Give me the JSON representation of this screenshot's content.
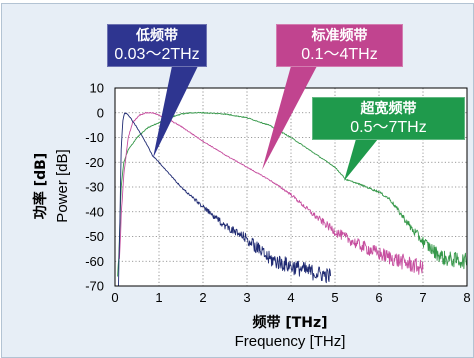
{
  "chart_data": {
    "type": "line",
    "xlabel": [
      "频带 [THz]",
      "Frequency [THz]"
    ],
    "ylabel": [
      "功率 [dB]",
      "Power [dB]"
    ],
    "xlim": [
      0,
      8
    ],
    "ylim": [
      -70,
      10
    ],
    "xticks": [
      0,
      1,
      2,
      3,
      4,
      5,
      6,
      7,
      8
    ],
    "yticks": [
      10,
      0,
      -10,
      -20,
      -30,
      -40,
      -50,
      -60,
      -70
    ],
    "grid": true,
    "series": [
      {
        "name": "低频带",
        "range": "0.03～2THz",
        "color": "#1f2a72",
        "label_color": "#2e3590",
        "points": [
          [
            0.08,
            -68
          ],
          [
            0.11,
            -45
          ],
          [
            0.14,
            -15
          ],
          [
            0.18,
            -3
          ],
          [
            0.22,
            0
          ],
          [
            0.28,
            -0.5
          ],
          [
            0.35,
            -2
          ],
          [
            0.5,
            -6
          ],
          [
            0.7,
            -12
          ],
          [
            0.86,
            -17.5
          ],
          [
            1.0,
            -20
          ],
          [
            1.25,
            -25
          ],
          [
            1.5,
            -30
          ],
          [
            1.75,
            -34
          ],
          [
            2.0,
            -38
          ],
          [
            2.25,
            -42
          ],
          [
            2.5,
            -45.5
          ],
          [
            2.75,
            -48.5
          ],
          [
            3.0,
            -51
          ],
          [
            3.25,
            -55
          ],
          [
            3.5,
            -59
          ],
          [
            4.0,
            -62
          ],
          [
            4.5,
            -64.5
          ],
          [
            4.9,
            -66
          ]
        ]
      },
      {
        "name": "标准频带",
        "range": "0.1～4THz",
        "color": "#c64f9f",
        "label_color": "#c1448f",
        "points": [
          [
            0.1,
            -60
          ],
          [
            0.14,
            -42
          ],
          [
            0.2,
            -25
          ],
          [
            0.3,
            -10
          ],
          [
            0.4,
            -4
          ],
          [
            0.55,
            -1
          ],
          [
            0.7,
            0
          ],
          [
            0.85,
            0
          ],
          [
            1.0,
            -1
          ],
          [
            1.25,
            -3
          ],
          [
            1.5,
            -5.5
          ],
          [
            1.75,
            -8.5
          ],
          [
            2.0,
            -11.5
          ],
          [
            2.5,
            -17
          ],
          [
            3.0,
            -22
          ],
          [
            3.5,
            -27
          ],
          [
            4.0,
            -33
          ],
          [
            4.5,
            -41
          ],
          [
            5.0,
            -48
          ],
          [
            5.5,
            -53
          ],
          [
            6.0,
            -57
          ],
          [
            6.5,
            -60
          ],
          [
            7.0,
            -63
          ]
        ]
      },
      {
        "name": "超宽频带",
        "range": "0.5～7THz",
        "color": "#36984a",
        "label_color": "#1f9a4c",
        "points": [
          [
            0.06,
            -68
          ],
          [
            0.1,
            -50
          ],
          [
            0.14,
            -30
          ],
          [
            0.2,
            -20
          ],
          [
            0.3,
            -15
          ],
          [
            0.5,
            -10
          ],
          [
            0.75,
            -6
          ],
          [
            1.0,
            -4
          ],
          [
            1.25,
            -2
          ],
          [
            1.5,
            -0.5
          ],
          [
            1.75,
            0
          ],
          [
            2.0,
            0
          ],
          [
            2.5,
            -0.5
          ],
          [
            3.0,
            -2
          ],
          [
            3.5,
            -5
          ],
          [
            4.0,
            -10
          ],
          [
            4.5,
            -16
          ],
          [
            5.0,
            -22
          ],
          [
            5.25,
            -27
          ],
          [
            5.5,
            -28.5
          ],
          [
            6.0,
            -32
          ],
          [
            6.25,
            -35
          ],
          [
            6.5,
            -41
          ],
          [
            6.75,
            -47
          ],
          [
            7.0,
            -52
          ],
          [
            7.25,
            -56
          ],
          [
            7.5,
            -59
          ],
          [
            8.0,
            -60
          ]
        ]
      }
    ]
  }
}
